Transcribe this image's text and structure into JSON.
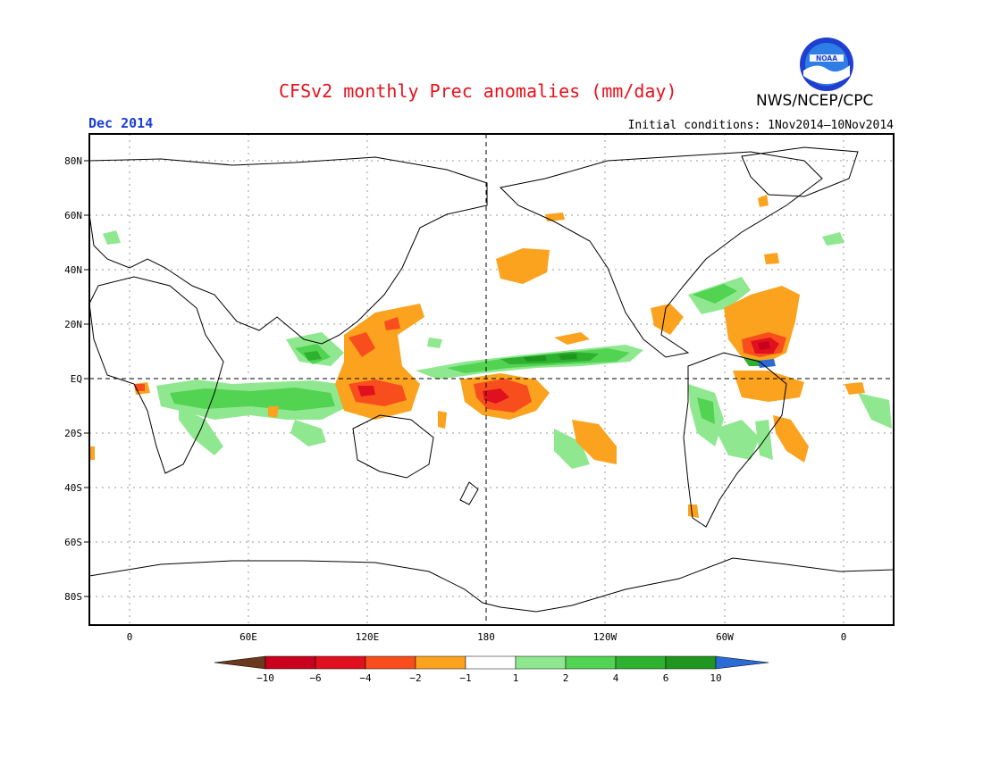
{
  "header": {
    "title": "CFSv2 monthly Prec anomalies (mm/day)",
    "organization": "NWS/NCEP/CPC",
    "logo_text": "NOAA",
    "month": "Dec 2014",
    "initial_conditions": "Initial conditions: 1Nov2014–10Nov2014"
  },
  "axes": {
    "lat_labels": [
      "80N",
      "60N",
      "40N",
      "20N",
      "EQ",
      "20S",
      "40S",
      "60S",
      "80S"
    ],
    "lon_labels": [
      "0",
      "60E",
      "120E",
      "180",
      "120W",
      "60W",
      "0"
    ]
  },
  "colorbar": {
    "labels": [
      "−10",
      "−6",
      "−4",
      "−2",
      "−1",
      "1",
      "2",
      "4",
      "6",
      "10"
    ],
    "colors": [
      "#6b3a1e",
      "#c8001e",
      "#e0101e",
      "#f84e1e",
      "#fba21e",
      "#ffffff",
      "#8fe88f",
      "#52d352",
      "#2eb12e",
      "#1f961f",
      "#2a6bd6"
    ]
  },
  "colors": {
    "title": "#e8101a",
    "month": "#1a3fd6"
  }
}
